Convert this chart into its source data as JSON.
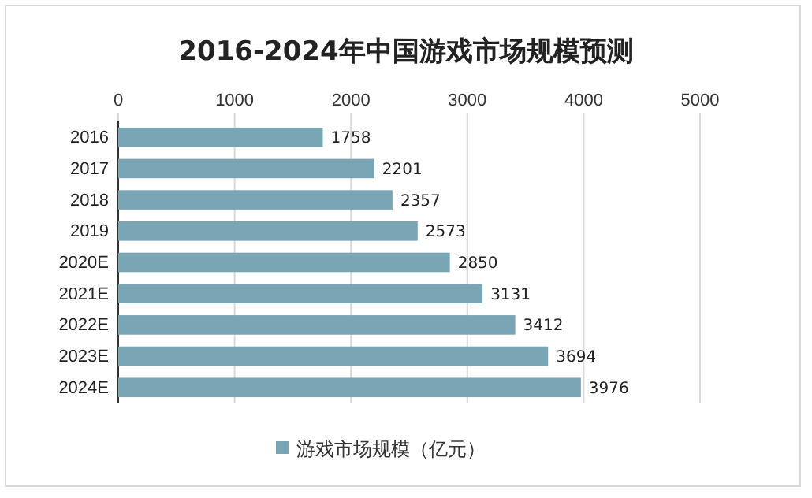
{
  "chart_data": {
    "type": "bar",
    "orientation": "horizontal",
    "title": "2016-2024年中国游戏市场规模预测",
    "categories": [
      "2016",
      "2017",
      "2018",
      "2019",
      "2020E",
      "2021E",
      "2022E",
      "2023E",
      "2024E"
    ],
    "series": [
      {
        "name": "游戏市场规模（亿元）",
        "color": "#7aa5b5",
        "values": [
          1758,
          2201,
          2357,
          2573,
          2850,
          3131,
          3412,
          3694,
          3976
        ]
      }
    ],
    "xlim": [
      0,
      5000
    ],
    "xticks": [
      0,
      1000,
      2000,
      3000,
      4000,
      5000
    ],
    "grid": "x",
    "legend": "bottom",
    "data_labels": true
  }
}
